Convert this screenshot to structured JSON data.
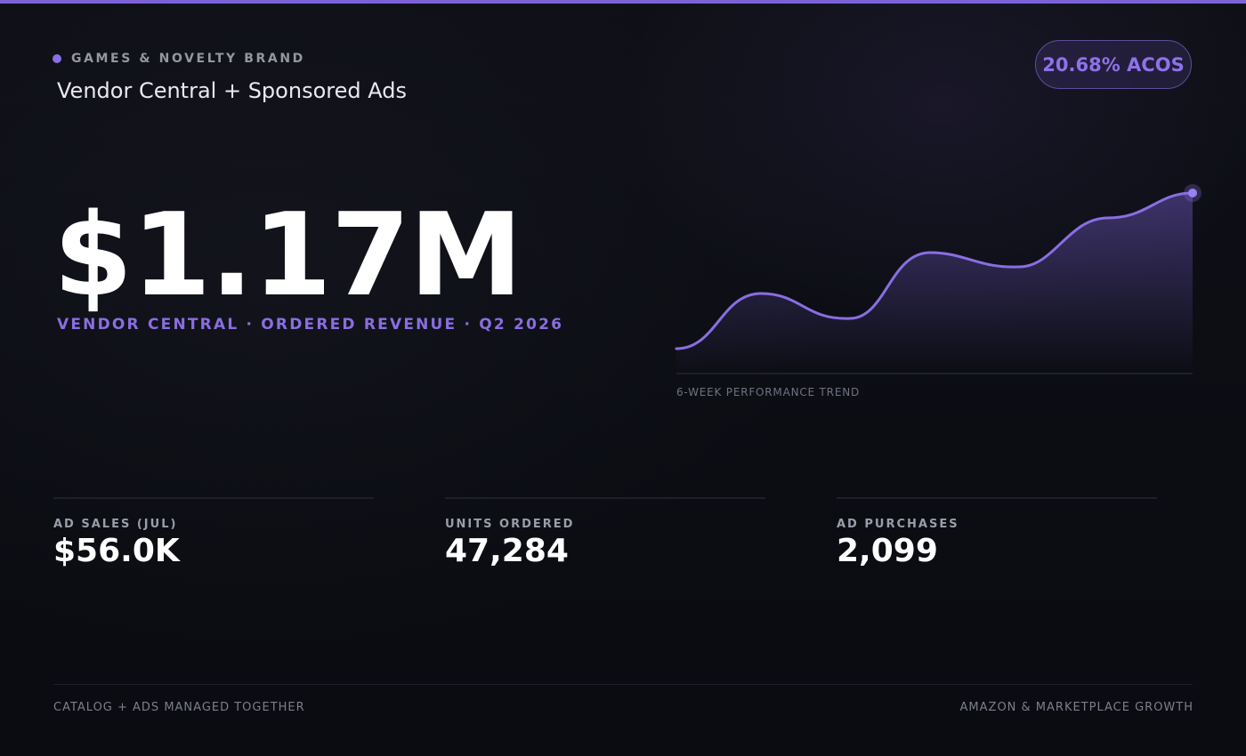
{
  "header": {
    "brand": "GAMES & NOVELTY BRAND",
    "subtitle": "Vendor Central + Sponsored Ads",
    "acos_badge": "20.68% ACOS"
  },
  "hero": {
    "value": "$1.17M",
    "caption": "VENDOR CENTRAL · ORDERED REVENUE · Q2 2026"
  },
  "trend": {
    "label": "6-WEEK PERFORMANCE TREND"
  },
  "metrics": [
    {
      "label": "AD SALES (JUL)",
      "value": "$56.0K"
    },
    {
      "label": "UNITS ORDERED",
      "value": "47,284"
    },
    {
      "label": "AD PURCHASES",
      "value": "2,099"
    }
  ],
  "footer": {
    "left": "CATALOG + ADS MANAGED TOGETHER",
    "right": "AMAZON & MARKETPLACE GROWTH"
  },
  "colors": {
    "accent": "#8b6fe6",
    "background": "#0b0d13",
    "text": "#ffffff",
    "muted": "#9497a3"
  }
}
